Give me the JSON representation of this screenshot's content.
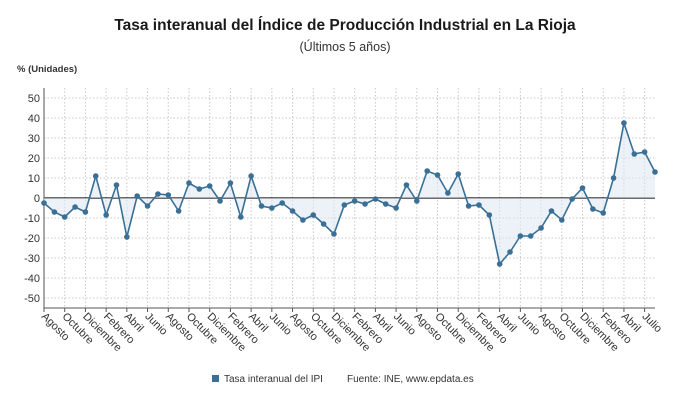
{
  "chart_data": {
    "type": "line",
    "title": "Tasa interanual del Índice de Producción Industrial en La Rioja",
    "subtitle": "(Últimos 5 años)",
    "ylabel": "% (Unidades)",
    "ylim": [
      -55,
      55
    ],
    "yticks": [
      50,
      40,
      30,
      20,
      10,
      0,
      -10,
      -20,
      -30,
      -40,
      -50
    ],
    "grid": true,
    "x_tick_labels": [
      "Agosto",
      "Octubre",
      "Diciembre",
      "Febrero",
      "Abril",
      "Junio",
      "Agosto",
      "Octubre",
      "Diciembre",
      "Febrero",
      "Abril",
      "Junio",
      "Agosto",
      "Octubre",
      "Diciembre",
      "Febrero",
      "Abril",
      "Junio",
      "Agosto",
      "Octubre",
      "Diciembre",
      "Febrero",
      "Abril",
      "Junio",
      "Agosto",
      "Octubre",
      "Diciembre",
      "Febrero",
      "Abril",
      "Julio"
    ],
    "series": [
      {
        "name": "Tasa interanual del IPI",
        "color": "#3a6f96",
        "values": [
          -2.5,
          -7,
          -9.5,
          -4.5,
          -7,
          11,
          -8.5,
          6.5,
          -19.5,
          1,
          -4,
          2,
          1.5,
          -6.5,
          7.5,
          4.5,
          6,
          -1.5,
          7.5,
          -9.5,
          11,
          -4,
          -5,
          -2.5,
          -6.5,
          -11,
          -8.5,
          -13,
          -18,
          -3.5,
          -1.5,
          -3,
          -0.5,
          -3,
          -5,
          6.5,
          -1.5,
          13.5,
          11.5,
          2.5,
          12,
          -4,
          -3.5,
          -8.5,
          -33,
          -27,
          -19,
          -19,
          -15,
          -6.5,
          -11,
          -0.5,
          5,
          -5.5,
          -7.5,
          10,
          37.5,
          22,
          23,
          13
        ]
      }
    ],
    "legend_position": "bottom",
    "source": "Fuente: INE, www.epdata.es"
  }
}
